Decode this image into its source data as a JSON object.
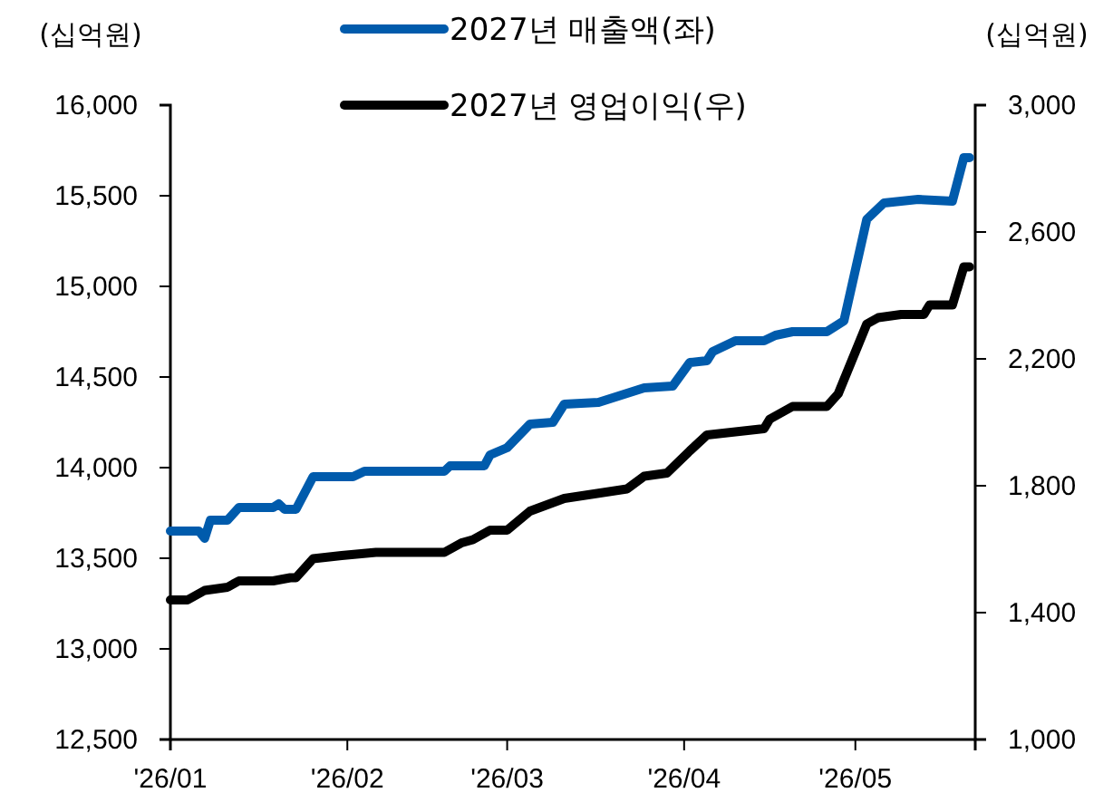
{
  "chart_data": {
    "type": "line",
    "ylabel": "(십억원)",
    "y2label": "(십억원)",
    "xlim": [
      "2026-01-01",
      "2026-05-22"
    ],
    "xticks": [
      {
        "value": "2026-01-01",
        "label": "'26/01"
      },
      {
        "value": "2026-02-01",
        "label": "'26/02"
      },
      {
        "value": "2026-03-01",
        "label": "'26/03"
      },
      {
        "value": "2026-04-01",
        "label": "'26/04"
      },
      {
        "value": "2026-05-01",
        "label": "'26/05"
      }
    ],
    "ylim": [
      12500,
      16000
    ],
    "yticks": [
      {
        "value": 12500,
        "label": "12,500"
      },
      {
        "value": 13000,
        "label": "13,000"
      },
      {
        "value": 13500,
        "label": "13,500"
      },
      {
        "value": 14000,
        "label": "14,000"
      },
      {
        "value": 14500,
        "label": "14,500"
      },
      {
        "value": 15000,
        "label": "15,000"
      },
      {
        "value": 15500,
        "label": "15,500"
      },
      {
        "value": 16000,
        "label": "16,000"
      }
    ],
    "y2lim": [
      1000,
      3000
    ],
    "y2ticks": [
      {
        "value": 1000,
        "label": "1,000"
      },
      {
        "value": 1400,
        "label": "1,400"
      },
      {
        "value": 1800,
        "label": "1,800"
      },
      {
        "value": 2200,
        "label": "2,200"
      },
      {
        "value": 2600,
        "label": "2,600"
      },
      {
        "value": 3000,
        "label": "3,000"
      }
    ],
    "grid": false,
    "legend": "top",
    "marker": "none",
    "line_style": "solid",
    "series": [
      {
        "name": "2027년 매출액(좌)",
        "color": "#005bac",
        "x": [
          "2026-01-01",
          "2026-01-06",
          "2026-01-07",
          "2026-01-08",
          "2026-01-11",
          "2026-01-13",
          "2026-01-19",
          "2026-01-20",
          "2026-01-21",
          "2026-01-23",
          "2026-01-26",
          "2026-02-02",
          "2026-02-04",
          "2026-02-18",
          "2026-02-19",
          "2026-02-25",
          "2026-02-26",
          "2026-03-01",
          "2026-03-05",
          "2026-03-09",
          "2026-03-11",
          "2026-03-17",
          "2026-03-25",
          "2026-03-30",
          "2026-04-02",
          "2026-04-05",
          "2026-04-06",
          "2026-04-10",
          "2026-04-15",
          "2026-04-17",
          "2026-04-20",
          "2026-04-26",
          "2026-04-29",
          "2026-05-03",
          "2026-05-06",
          "2026-05-12",
          "2026-05-18",
          "2026-05-20",
          "2026-05-21"
        ],
        "values": [
          13650,
          13650,
          13610,
          13710,
          13710,
          13780,
          13780,
          13800,
          13770,
          13770,
          13950,
          13950,
          13980,
          13980,
          14010,
          14010,
          14070,
          14110,
          14240,
          14250,
          14350,
          14360,
          14440,
          14450,
          14580,
          14590,
          14640,
          14700,
          14700,
          14730,
          14750,
          14750,
          14810,
          15370,
          15460,
          15480,
          15470,
          15710,
          15710
        ]
      },
      {
        "name": "2027년 영업이익(우)",
        "color": "#000000",
        "axis": "y2",
        "x": [
          "2026-01-01",
          "2026-01-04",
          "2026-01-07",
          "2026-01-11",
          "2026-01-13",
          "2026-01-19",
          "2026-01-22",
          "2026-01-23",
          "2026-01-26",
          "2026-01-31",
          "2026-02-06",
          "2026-02-18",
          "2026-02-21",
          "2026-02-23",
          "2026-02-26",
          "2026-03-01",
          "2026-03-05",
          "2026-03-11",
          "2026-03-22",
          "2026-03-25",
          "2026-03-29",
          "2026-04-02",
          "2026-04-05",
          "2026-04-15",
          "2026-04-16",
          "2026-04-20",
          "2026-04-26",
          "2026-04-28",
          "2026-05-03",
          "2026-05-05",
          "2026-05-09",
          "2026-05-13",
          "2026-05-14",
          "2026-05-18",
          "2026-05-20",
          "2026-05-21"
        ],
        "values": [
          1440,
          1440,
          1470,
          1480,
          1500,
          1500,
          1510,
          1510,
          1570,
          1580,
          1590,
          1590,
          1620,
          1630,
          1660,
          1660,
          1720,
          1760,
          1790,
          1830,
          1840,
          1910,
          1960,
          1980,
          2010,
          2050,
          2050,
          2090,
          2310,
          2330,
          2340,
          2340,
          2370,
          2370,
          2490,
          2490
        ]
      }
    ]
  }
}
